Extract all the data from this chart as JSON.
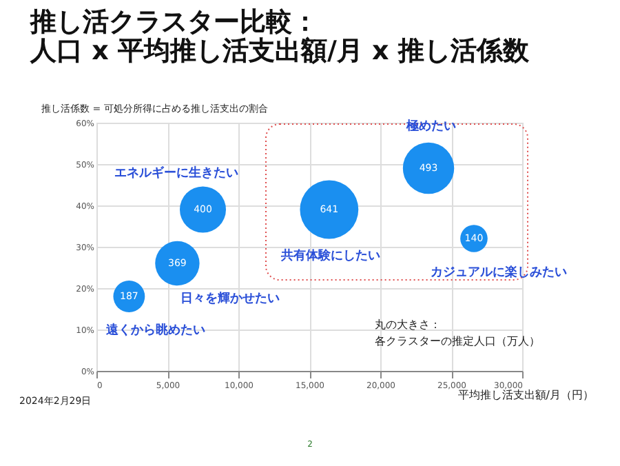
{
  "chart_data": {
    "type": "bubble",
    "title": "推し活クラスター比較：",
    "subtitle": "人口 x 平均推し活支出額/月 x 推し活係数",
    "ylabel": "推し活係数 = 可処分所得に占める推し活支出の割合",
    "xlabel": "平均推し活支出額/月（円）",
    "x": [
      2300,
      5700,
      7500,
      16400,
      23400,
      26600
    ],
    "series": [
      {
        "color": "#1a8ff0",
        "values": [
          18,
          26,
          39,
          39,
          49,
          32
        ],
        "sizes": [
          187,
          369,
          400,
          641,
          493,
          140
        ],
        "value_labels": [
          "187",
          "369",
          "400",
          "641",
          "493",
          "140"
        ]
      }
    ],
    "xlim": [
      0,
      30000
    ],
    "xticks": [
      {
        "value": 0,
        "label": "0"
      },
      {
        "value": 5000,
        "label": "5,000"
      },
      {
        "value": 10000,
        "label": "10,000"
      },
      {
        "value": 15000,
        "label": "15,000"
      },
      {
        "value": 20000,
        "label": "20,000"
      },
      {
        "value": 25000,
        "label": "25,000"
      },
      {
        "value": 30000,
        "label": "30,000"
      }
    ],
    "ylim": [
      0,
      60
    ],
    "yticks": [
      {
        "value": 0,
        "label": "0%"
      },
      {
        "value": 10,
        "label": "10%"
      },
      {
        "value": 20,
        "label": "20%"
      },
      {
        "value": 30,
        "label": "30%"
      },
      {
        "value": 40,
        "label": "40%"
      },
      {
        "value": 50,
        "label": "50%"
      },
      {
        "value": 60,
        "label": "60%"
      }
    ],
    "grid": true,
    "annotations": [
      "エネルギーに生きたい",
      "日々を輝かせたい",
      "遠くから眺めたい",
      "共有体験にしたい",
      "極めたい",
      "カジュアルに楽しみたい",
      "丸の大きさ：",
      "各クラスターの推定人口（万人）",
      "2024年2月29日",
      "2"
    ]
  }
}
